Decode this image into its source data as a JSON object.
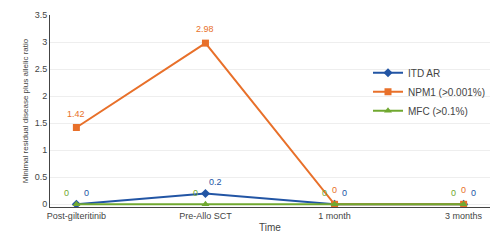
{
  "chart_data": {
    "type": "line",
    "categories": [
      "Post-gilteritinib",
      "Pre-Allo SCT",
      "1 month",
      "3 months"
    ],
    "xlabel": "Time",
    "ylabel": "Minimal residual disease plus allelic ratio",
    "series": [
      {
        "name": "ITD AR",
        "color": "#2255a4",
        "marker": "diamond",
        "values": [
          0,
          0.2,
          0,
          0
        ]
      },
      {
        "name": "NPM1 (>0.001%)",
        "color": "#e8702a",
        "marker": "square",
        "values": [
          1.42,
          2.98,
          0,
          0
        ]
      },
      {
        "name": "MFC (>0.1%)",
        "color": "#70a830",
        "marker": "triangle-up",
        "values": [
          0,
          0,
          0,
          0
        ]
      }
    ],
    "ylim": [
      -0.05,
      3.5
    ],
    "yticks": [
      0,
      0.5,
      1,
      1.5,
      2,
      2.5,
      3,
      3.5
    ],
    "grid": true,
    "legend": "right",
    "data_labels": true
  }
}
